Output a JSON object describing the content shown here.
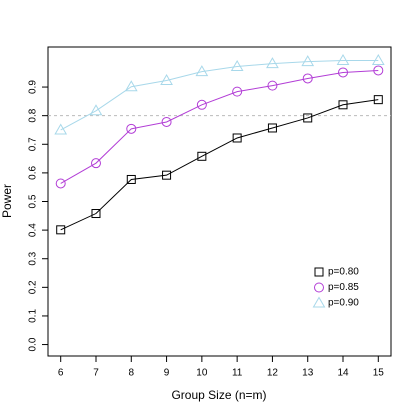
{
  "chart_data": {
    "type": "line",
    "xlabel": "Group Size (n=m)",
    "ylabel": "Power",
    "x": [
      6,
      7,
      8,
      9,
      10,
      11,
      12,
      13,
      14,
      15
    ],
    "series": [
      {
        "name": "p=0.80",
        "color": "#000000",
        "marker": "square",
        "values": [
          0.401,
          0.458,
          0.577,
          0.592,
          0.658,
          0.722,
          0.757,
          0.792,
          0.838,
          0.856
        ]
      },
      {
        "name": "p=0.85",
        "color": "#b23dd6",
        "marker": "circle",
        "values": [
          0.563,
          0.634,
          0.754,
          0.778,
          0.838,
          0.884,
          0.905,
          0.93,
          0.951,
          0.958
        ]
      },
      {
        "name": "p=0.90",
        "color": "#a8d8ea",
        "marker": "triangle",
        "values": [
          0.75,
          0.817,
          0.901,
          0.923,
          0.954,
          0.972,
          0.982,
          0.989,
          0.993,
          0.993
        ]
      }
    ],
    "xlim": [
      5.64,
      15.36
    ],
    "ylim": [
      -0.04,
      1.04
    ],
    "xticks": [
      6,
      7,
      8,
      9,
      10,
      11,
      12,
      13,
      14,
      15
    ],
    "yticks": [
      {
        "value": 0,
        "label": "0.0"
      },
      0.1,
      0.2,
      0.3,
      0.4,
      0.5,
      0.6,
      0.7,
      0.8,
      0.9
    ],
    "reference_line": 0.8,
    "legend": "bottom-right"
  }
}
